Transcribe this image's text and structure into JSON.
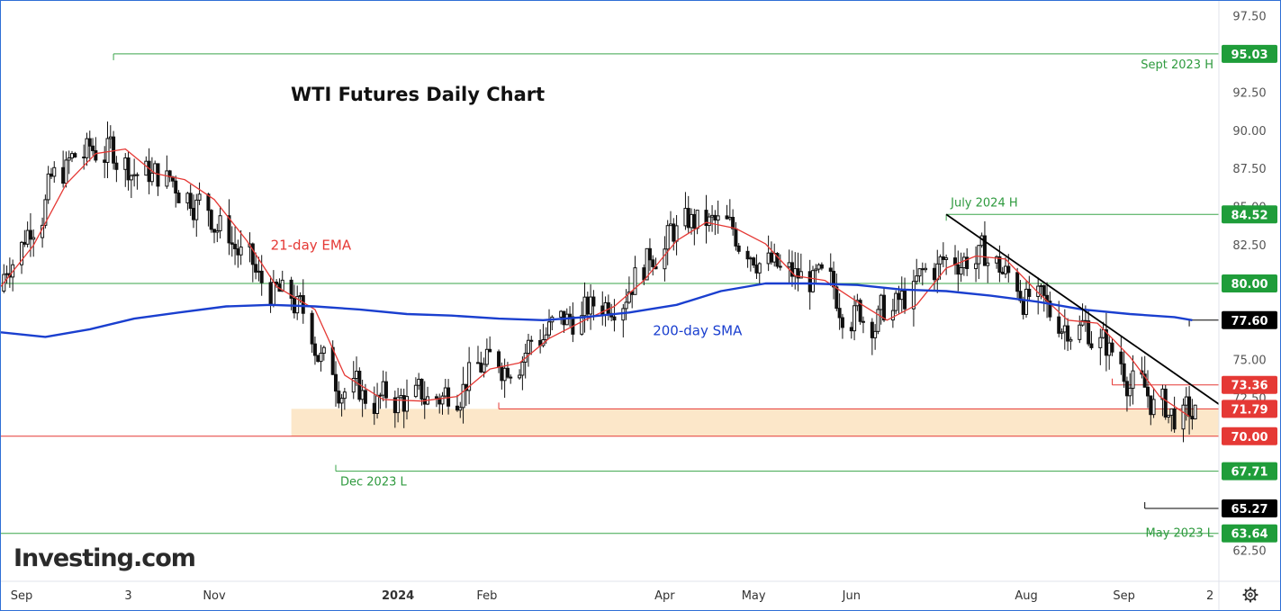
{
  "chart_data": {
    "type": "candlestick",
    "title": "WTI Futures Daily Chart",
    "brand": "Investing.com",
    "y_axis": {
      "ylim": [
        60.5,
        98.5
      ],
      "ticks": [
        62.5,
        65.0,
        67.5,
        70.0,
        72.5,
        75.0,
        77.5,
        80.0,
        82.5,
        85.0,
        87.5,
        90.0,
        92.5,
        95.0,
        97.5
      ],
      "tick_labels": [
        "62.50",
        "65.00",
        "67.50",
        "70.00",
        "72.50",
        "75.00",
        "77.50",
        "80.00",
        "82.50",
        "85.00",
        "87.50",
        "90.00",
        "92.50",
        "95.00",
        "97.50"
      ]
    },
    "x_axis": {
      "date_range": [
        "2023-08-21",
        "2024-10-05"
      ],
      "ticks": [
        {
          "date": "2023-08-28",
          "label": "Sep",
          "bold": false
        },
        {
          "date": "2023-10-03",
          "label": "3",
          "bold": false
        },
        {
          "date": "2023-11-01",
          "label": "Nov",
          "bold": false
        },
        {
          "date": "2024-01-02",
          "label": "2024",
          "bold": true
        },
        {
          "date": "2024-02-01",
          "label": "Feb",
          "bold": false
        },
        {
          "date": "2024-04-01",
          "label": "Apr",
          "bold": false
        },
        {
          "date": "2024-05-01",
          "label": "May",
          "bold": false
        },
        {
          "date": "2024-06-03",
          "label": "Jun",
          "bold": false
        },
        {
          "date": "2024-08-01",
          "label": "Aug",
          "bold": false
        },
        {
          "date": "2024-09-03",
          "label": "Sep",
          "bold": false
        },
        {
          "date": "2024-10-02",
          "label": "2",
          "bold": false
        }
      ]
    },
    "levels": [
      {
        "value": 95.03,
        "label": "95.03",
        "tag_color": "#1f9d3a",
        "line_color": "#3aa54a",
        "note": "Sept 2023 H",
        "note_color": "#2e9a3e",
        "from_date": "2023-09-28"
      },
      {
        "value": 84.52,
        "label": "84.52",
        "tag_color": "#1f9d3a",
        "line_color": "#3aa54a",
        "note": "July 2024 H",
        "note_color": "#2e9a3e",
        "from_date": "2024-07-05"
      },
      {
        "value": 80.0,
        "label": "80.00",
        "tag_color": "#1f9d3a",
        "line_color": "#3aa54a",
        "note": "",
        "note_color": "",
        "from_date": "2023-08-21"
      },
      {
        "value": 77.6,
        "label": "77.60",
        "tag_color": "#000000",
        "line_color": "#000000",
        "note": "",
        "note_color": "",
        "from_date": "2024-09-25"
      },
      {
        "value": 73.36,
        "label": "73.36",
        "tag_color": "#e53935",
        "line_color": "#e53935",
        "note": "",
        "note_color": "",
        "from_date": "2024-08-30"
      },
      {
        "value": 71.79,
        "label": "71.79",
        "tag_color": "#e53935",
        "line_color": "#e53935",
        "note": "",
        "note_color": "",
        "from_date": "2024-02-05"
      },
      {
        "value": 70.0,
        "label": "70.00",
        "tag_color": "#e53935",
        "line_color": "#e53935",
        "note": "",
        "note_color": "",
        "from_date": "2023-08-21"
      },
      {
        "value": 67.71,
        "label": "67.71",
        "tag_color": "#1f9d3a",
        "line_color": "#3aa54a",
        "note": "Dec 2023 L",
        "note_color": "#2e9a3e",
        "from_date": "2023-12-12"
      },
      {
        "value": 65.27,
        "label": "65.27",
        "tag_color": "#000000",
        "line_color": "#000000",
        "note": "",
        "note_color": "",
        "from_date": "2024-09-10"
      },
      {
        "value": 63.64,
        "label": "63.64",
        "tag_color": "#1f9d3a",
        "line_color": "#3aa54a",
        "note": "May 2023 L",
        "note_color": "#2e9a3e",
        "from_date": "2023-08-21"
      }
    ],
    "support_zone": {
      "from_date": "2023-11-27",
      "to_date": "2024-10-05",
      "low": 70.0,
      "high": 71.79,
      "color": "#fbe3c0"
    },
    "trendline": {
      "from": {
        "date": "2024-07-05",
        "value": 84.52
      },
      "to": {
        "date": "2024-10-05",
        "value": 72.1
      },
      "color": "#000000"
    },
    "indicators": [
      {
        "name": "21-day EMA",
        "color": "#e53935",
        "label_date": "2023-11-20",
        "label_value": 82.2
      },
      {
        "name": "200-day SMA",
        "color": "#1a3fcf",
        "label_date": "2024-03-28",
        "label_value": 76.6
      }
    ],
    "sma200": [
      {
        "date": "2023-08-21",
        "value": 76.8
      },
      {
        "date": "2023-09-05",
        "value": 76.5
      },
      {
        "date": "2023-09-20",
        "value": 77.0
      },
      {
        "date": "2023-10-05",
        "value": 77.7
      },
      {
        "date": "2023-10-20",
        "value": 78.1
      },
      {
        "date": "2023-11-05",
        "value": 78.5
      },
      {
        "date": "2023-11-20",
        "value": 78.6
      },
      {
        "date": "2023-12-05",
        "value": 78.5
      },
      {
        "date": "2023-12-20",
        "value": 78.3
      },
      {
        "date": "2024-01-05",
        "value": 78.0
      },
      {
        "date": "2024-01-20",
        "value": 77.9
      },
      {
        "date": "2024-02-05",
        "value": 77.7
      },
      {
        "date": "2024-02-20",
        "value": 77.6
      },
      {
        "date": "2024-03-05",
        "value": 77.8
      },
      {
        "date": "2024-03-20",
        "value": 78.1
      },
      {
        "date": "2024-04-05",
        "value": 78.6
      },
      {
        "date": "2024-04-20",
        "value": 79.5
      },
      {
        "date": "2024-05-05",
        "value": 80.0
      },
      {
        "date": "2024-05-20",
        "value": 80.0
      },
      {
        "date": "2024-06-05",
        "value": 79.9
      },
      {
        "date": "2024-06-20",
        "value": 79.6
      },
      {
        "date": "2024-07-05",
        "value": 79.5
      },
      {
        "date": "2024-07-20",
        "value": 79.2
      },
      {
        "date": "2024-08-05",
        "value": 78.8
      },
      {
        "date": "2024-08-20",
        "value": 78.3
      },
      {
        "date": "2024-09-05",
        "value": 78.0
      },
      {
        "date": "2024-09-20",
        "value": 77.8
      },
      {
        "date": "2024-09-26",
        "value": 77.6
      }
    ],
    "ema21": [
      {
        "date": "2023-08-21",
        "value": 79.8
      },
      {
        "date": "2023-09-01",
        "value": 82.5
      },
      {
        "date": "2023-09-12",
        "value": 86.5
      },
      {
        "date": "2023-09-22",
        "value": 88.5
      },
      {
        "date": "2023-10-02",
        "value": 88.8
      },
      {
        "date": "2023-10-12",
        "value": 87.2
      },
      {
        "date": "2023-10-22",
        "value": 86.8
      },
      {
        "date": "2023-11-01",
        "value": 85.5
      },
      {
        "date": "2023-11-12",
        "value": 82.8
      },
      {
        "date": "2023-11-22",
        "value": 79.8
      },
      {
        "date": "2023-12-05",
        "value": 78.3
      },
      {
        "date": "2023-12-15",
        "value": 74.0
      },
      {
        "date": "2023-12-28",
        "value": 72.4
      },
      {
        "date": "2024-01-10",
        "value": 72.3
      },
      {
        "date": "2024-01-22",
        "value": 72.6
      },
      {
        "date": "2024-02-02",
        "value": 74.4
      },
      {
        "date": "2024-02-12",
        "value": 74.8
      },
      {
        "date": "2024-02-22",
        "value": 76.4
      },
      {
        "date": "2024-03-05",
        "value": 77.6
      },
      {
        "date": "2024-03-15",
        "value": 78.5
      },
      {
        "date": "2024-03-25",
        "value": 80.2
      },
      {
        "date": "2024-04-05",
        "value": 82.8
      },
      {
        "date": "2024-04-15",
        "value": 84.0
      },
      {
        "date": "2024-04-25",
        "value": 83.6
      },
      {
        "date": "2024-05-05",
        "value": 82.6
      },
      {
        "date": "2024-05-15",
        "value": 80.5
      },
      {
        "date": "2024-05-25",
        "value": 80.2
      },
      {
        "date": "2024-06-05",
        "value": 78.8
      },
      {
        "date": "2024-06-15",
        "value": 77.6
      },
      {
        "date": "2024-06-25",
        "value": 78.6
      },
      {
        "date": "2024-07-05",
        "value": 81.0
      },
      {
        "date": "2024-07-15",
        "value": 81.8
      },
      {
        "date": "2024-07-25",
        "value": 81.6
      },
      {
        "date": "2024-08-05",
        "value": 79.4
      },
      {
        "date": "2024-08-15",
        "value": 77.6
      },
      {
        "date": "2024-08-25",
        "value": 77.4
      },
      {
        "date": "2024-09-05",
        "value": 75.2
      },
      {
        "date": "2024-09-15",
        "value": 72.6
      },
      {
        "date": "2024-09-25",
        "value": 71.3
      }
    ]
  }
}
